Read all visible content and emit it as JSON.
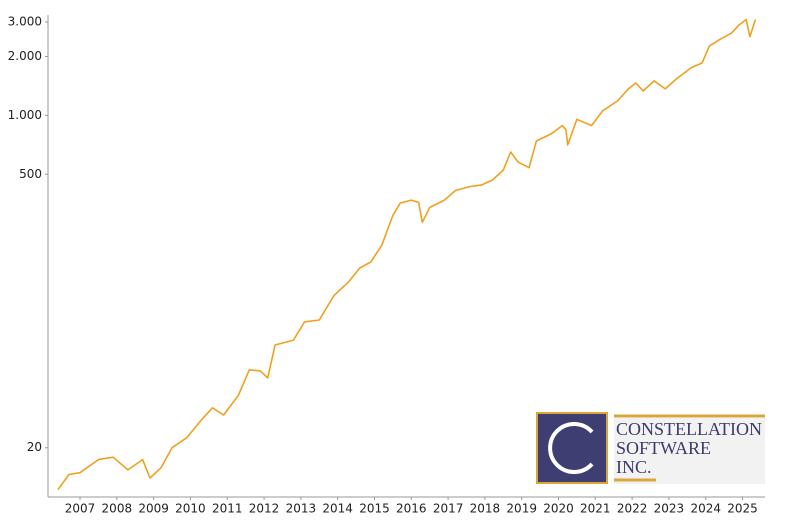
{
  "chart_data": {
    "type": "line",
    "log_scale": true,
    "grid": false,
    "x": [
      2006.4,
      2006.7,
      2007.0,
      2007.5,
      2007.9,
      2008.3,
      2008.7,
      2008.9,
      2009.2,
      2009.5,
      2009.9,
      2010.3,
      2010.6,
      2010.9,
      2011.3,
      2011.6,
      2011.9,
      2012.1,
      2012.3,
      2012.8,
      2013.1,
      2013.5,
      2013.9,
      2014.3,
      2014.6,
      2014.9,
      2015.2,
      2015.5,
      2015.7,
      2016.0,
      2016.2,
      2016.3,
      2016.5,
      2016.9,
      2017.2,
      2017.6,
      2017.9,
      2018.2,
      2018.5,
      2018.7,
      2018.9,
      2019.2,
      2019.4,
      2019.8,
      2020.1,
      2020.2,
      2020.25,
      2020.5,
      2020.9,
      2021.2,
      2021.6,
      2021.9,
      2022.1,
      2022.3,
      2022.6,
      2022.9,
      2023.2,
      2023.6,
      2023.9,
      2024.1,
      2024.4,
      2024.7,
      2024.9,
      2025.1,
      2025.2,
      2025.35
    ],
    "series": [
      {
        "name": "Constellation Software",
        "color": "#f0a020",
        "values": [
          12.2,
          14.6,
          14.9,
          17.4,
          17.9,
          15.4,
          17.4,
          14.0,
          15.8,
          20,
          22.5,
          27.8,
          32,
          29.4,
          37,
          50,
          49.4,
          45.5,
          67,
          71,
          88,
          90,
          120,
          141,
          166,
          178,
          217,
          308,
          356,
          369,
          359,
          284,
          338,
          369,
          413,
          433,
          440,
          467,
          525,
          650,
          578,
          540,
          741,
          804,
          887,
          846,
          707,
          955,
          887,
          1056,
          1185,
          1366,
          1464,
          1334,
          1500,
          1366,
          1535,
          1748,
          1855,
          2265,
          2455,
          2635,
          2893,
          3090,
          2526,
          3090
        ]
      }
    ],
    "xlim": [
      2006.13,
      2025.61
    ],
    "xticks": [
      2007,
      2008,
      2009,
      2010,
      2011,
      2012,
      2013,
      2014,
      2015,
      2016,
      2017,
      2018,
      2019,
      2020,
      2021,
      2022,
      2023,
      2024,
      2025
    ],
    "ylim": [
      11.2,
      3260
    ],
    "yticks": [
      20,
      500,
      {
        "value": 1000,
        "label": "1.000"
      },
      {
        "value": 2000,
        "label": "2.000"
      },
      {
        "value": 3000,
        "label": "3.000"
      }
    ],
    "logo_lines": [
      "CONSTELLATION",
      "SOFTWARE",
      "INC."
    ]
  }
}
